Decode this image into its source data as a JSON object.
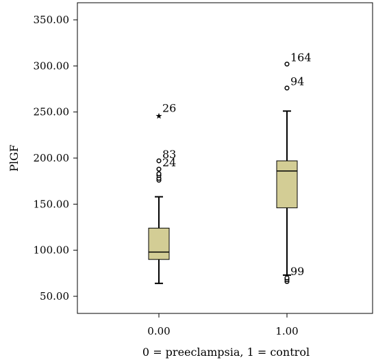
{
  "chart_data": {
    "type": "box",
    "title": "",
    "xlabel": "0 = preeclampsia, 1 = control",
    "ylabel": "PlGF",
    "ylim": [
      40,
      360
    ],
    "yticks": [
      50,
      100,
      150,
      200,
      250,
      300,
      350
    ],
    "ytick_labels": [
      "50.00",
      "100.00",
      "150.00",
      "200.00",
      "250.00",
      "300.00",
      "350.00"
    ],
    "box_fill": "#d3cd95",
    "groups": [
      {
        "category": "0.00",
        "whisker_low": 64,
        "q1": 90,
        "median": 98,
        "q3": 124,
        "whisker_high": 158,
        "outliers": [
          {
            "value": 176,
            "marker": "circle"
          },
          {
            "value": 178,
            "marker": "circle"
          },
          {
            "value": 181,
            "marker": "circle"
          },
          {
            "value": 183,
            "marker": "circle"
          },
          {
            "value": 188,
            "marker": "circle",
            "label": "24"
          },
          {
            "value": 197,
            "marker": "circle",
            "label": "83"
          },
          {
            "value": 247,
            "marker": "star",
            "label": "26"
          }
        ]
      },
      {
        "category": "1.00",
        "whisker_low": 73,
        "q1": 146,
        "median": 186,
        "q3": 197,
        "whisker_high": 251,
        "outliers": [
          {
            "value": 66,
            "marker": "circle"
          },
          {
            "value": 68,
            "marker": "circle"
          },
          {
            "value": 70,
            "marker": "circle",
            "label": "99"
          },
          {
            "value": 276,
            "marker": "circle",
            "label": "94"
          },
          {
            "value": 302,
            "marker": "circle",
            "label": "164"
          }
        ]
      }
    ]
  }
}
